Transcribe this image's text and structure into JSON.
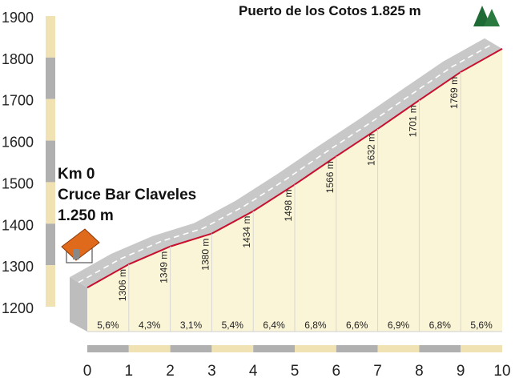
{
  "chart_data": {
    "type": "area",
    "title": "",
    "xlabel": "",
    "ylabel": "",
    "x": [
      0,
      1,
      2,
      3,
      4,
      5,
      6,
      7,
      8,
      9,
      10
    ],
    "x_tick_labels": [
      "0",
      "1",
      "2",
      "3",
      "4",
      "5",
      "6",
      "7",
      "8",
      "9",
      "10"
    ],
    "elevations": [
      1250,
      1306,
      1349,
      1380,
      1434,
      1498,
      1566,
      1632,
      1701,
      1769,
      1825
    ],
    "elevation_labels": [
      "",
      "1306 m",
      "1349 m",
      "1380 m",
      "1434 m",
      "1498 m",
      "1566 m",
      "1632 m",
      "1701 m",
      "1769 m",
      ""
    ],
    "gradients": [
      "5,6%",
      "4,3%",
      "3,1%",
      "5,4%",
      "6,4%",
      "6,8%",
      "6,6%",
      "6,9%",
      "6,8%",
      "5,6%"
    ],
    "y_ticks": [
      1200,
      1300,
      1400,
      1500,
      1600,
      1700,
      1800,
      1900
    ],
    "y_tick_labels": [
      "1200",
      "1300",
      "1400",
      "1500",
      "1600",
      "1700",
      "1800",
      "1900"
    ],
    "ylim": [
      1200,
      1900
    ],
    "xlim": [
      0,
      10
    ],
    "start_label": {
      "line1": "Km 0",
      "line2": "Cruce Bar Claveles",
      "line3": "1.250 m"
    },
    "summit_label": "Puerto de los Cotos 1.825 m",
    "colors": {
      "profile_line": "#c8102e",
      "fill": "#fbf5d8",
      "ribbon": "#c8c8c8",
      "axis_beige": "#f0e2b2",
      "axis_gray": "#b0b0b0",
      "tree": "#1f6b35",
      "house_roof": "#e06a1b"
    },
    "icons": {
      "start": "house-icon",
      "summit": "pine-trees-icon"
    }
  }
}
